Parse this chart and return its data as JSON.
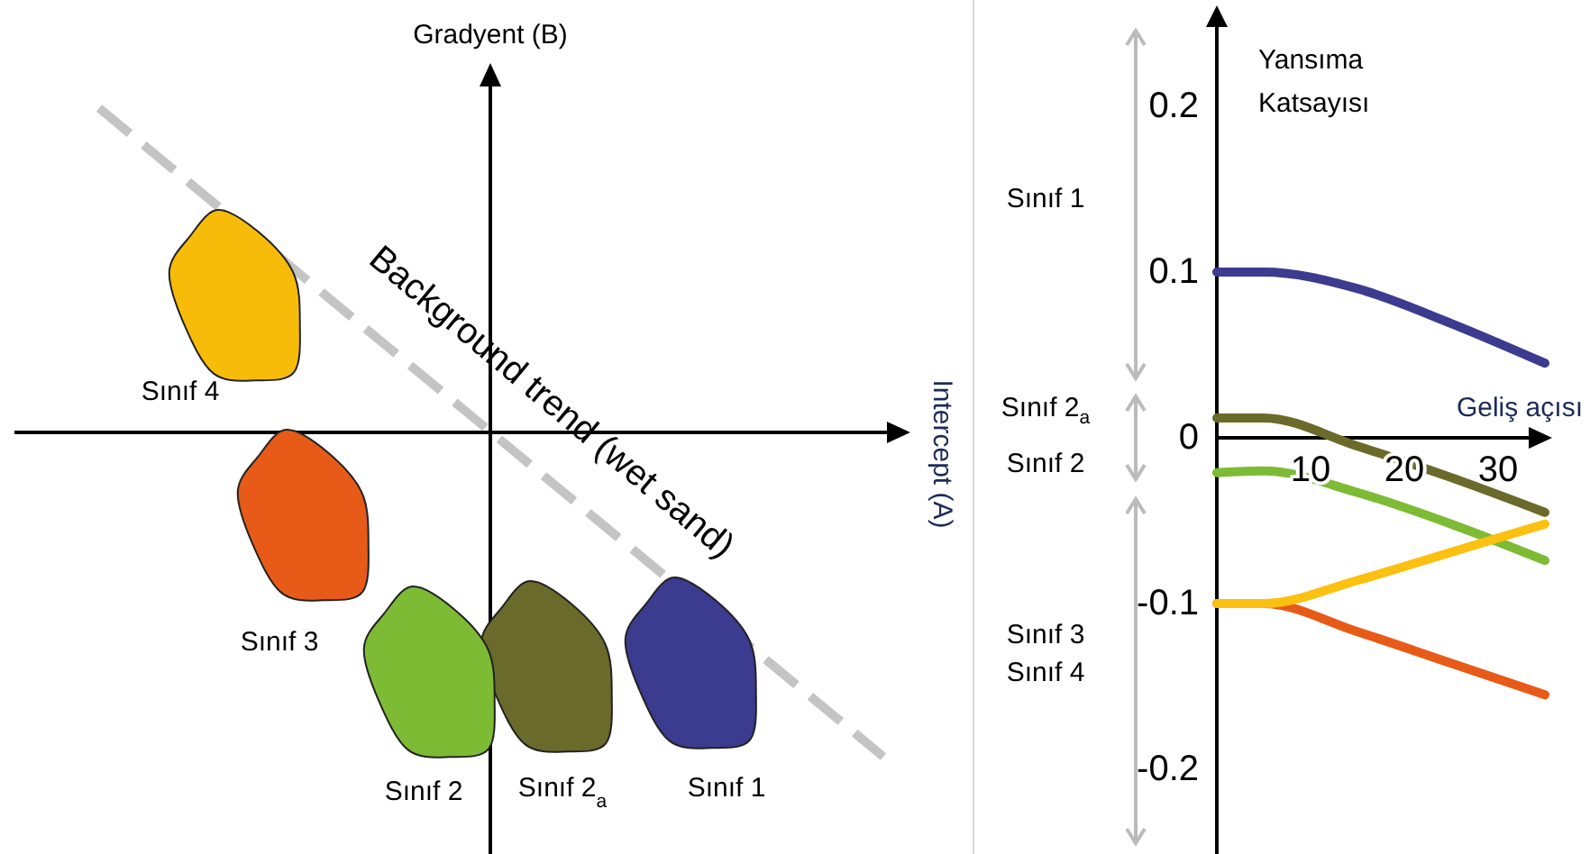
{
  "chart_data": [
    {
      "type": "other",
      "xlabel": "Intercept (A)",
      "ylabel": "Gradyent (B)",
      "categories": [
        "Sınıf 1",
        "Sınıf 2$_{a}$",
        "Sınıf 2",
        "Sınıf 3",
        "Sınıf 4"
      ],
      "colors": [
        "#3b3b8f",
        "#6a6a2a",
        "#7dbb35",
        "#e85a18",
        "#f7bc0a"
      ],
      "annotations": [
        "Background trend (wet sand)"
      ]
    },
    {
      "type": "line",
      "xlabel": "Geliş açısı",
      "ylabel": "Yansıma Katsayısı",
      "x": [
        0,
        5,
        15,
        25,
        35
      ],
      "xlim": [
        0,
        35
      ],
      "xticks": [
        10,
        20,
        30
      ],
      "ylim": [
        -0.25,
        0.25
      ],
      "yticks": [
        -0.2,
        -0.1,
        0,
        0.1,
        0.2
      ],
      "series": [
        {
          "color": "#3b3b8f",
          "values": [
            0.1,
            0.1,
            0.09,
            0.069,
            0.045
          ]
        },
        {
          "color": "#6a6a2a",
          "values": [
            0.012,
            0.012,
            -0.005,
            -0.024,
            -0.045
          ]
        },
        {
          "color": "#7dbb35",
          "values": [
            -0.021,
            -0.02,
            -0.033,
            -0.052,
            -0.074
          ]
        },
        {
          "color": "#e85a18",
          "values": [
            -0.1,
            -0.1,
            -0.117,
            -0.136,
            -0.155
          ]
        },
        {
          "color": "#fbc010",
          "values": [
            -0.1,
            -0.1,
            -0.086,
            -0.069,
            -0.052
          ]
        }
      ],
      "annotations": [
        "Sınıf 1",
        "Sınıf 2$_{a}$",
        "Sınıf 2",
        "Sınıf 3",
        "Sınıf 4"
      ]
    }
  ]
}
